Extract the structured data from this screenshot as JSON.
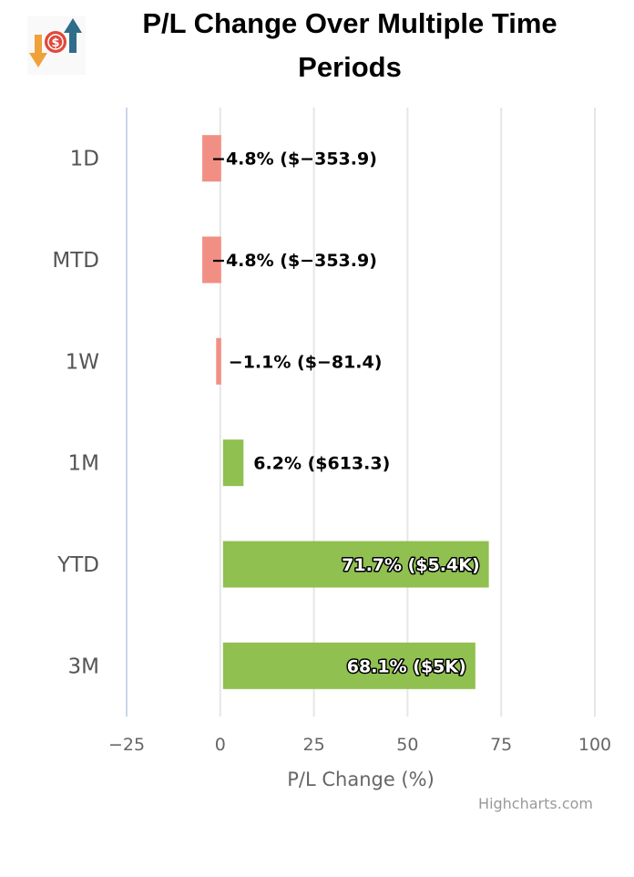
{
  "title": "P/L Change Over Multiple Time Periods",
  "credits": "Highcharts.com",
  "chart_data": {
    "type": "bar",
    "orientation": "horizontal",
    "title": "P/L Change Over Multiple Time Periods",
    "xlabel": "P/L Change (%)",
    "ylabel": "",
    "xlim": [
      -25,
      100
    ],
    "ticks": [
      -25,
      0,
      25,
      50,
      75,
      100
    ],
    "tick_labels": [
      "−25",
      "0",
      "25",
      "50",
      "75",
      "100"
    ],
    "categories": [
      "1D",
      "MTD",
      "1W",
      "1M",
      "YTD",
      "3M"
    ],
    "values": [
      -4.8,
      -4.8,
      -1.1,
      6.2,
      71.7,
      68.1
    ],
    "data_labels": [
      "−4.8% ($−353.9)",
      "−4.8% ($−353.9)",
      "−1.1% ($−81.4)",
      "6.2% ($613.3)",
      "71.7% ($5.4K)",
      "68.1% ($5K)"
    ],
    "colors": {
      "negative": "#f28f84",
      "positive": "#90c050"
    },
    "grid": true,
    "legend": "none"
  }
}
